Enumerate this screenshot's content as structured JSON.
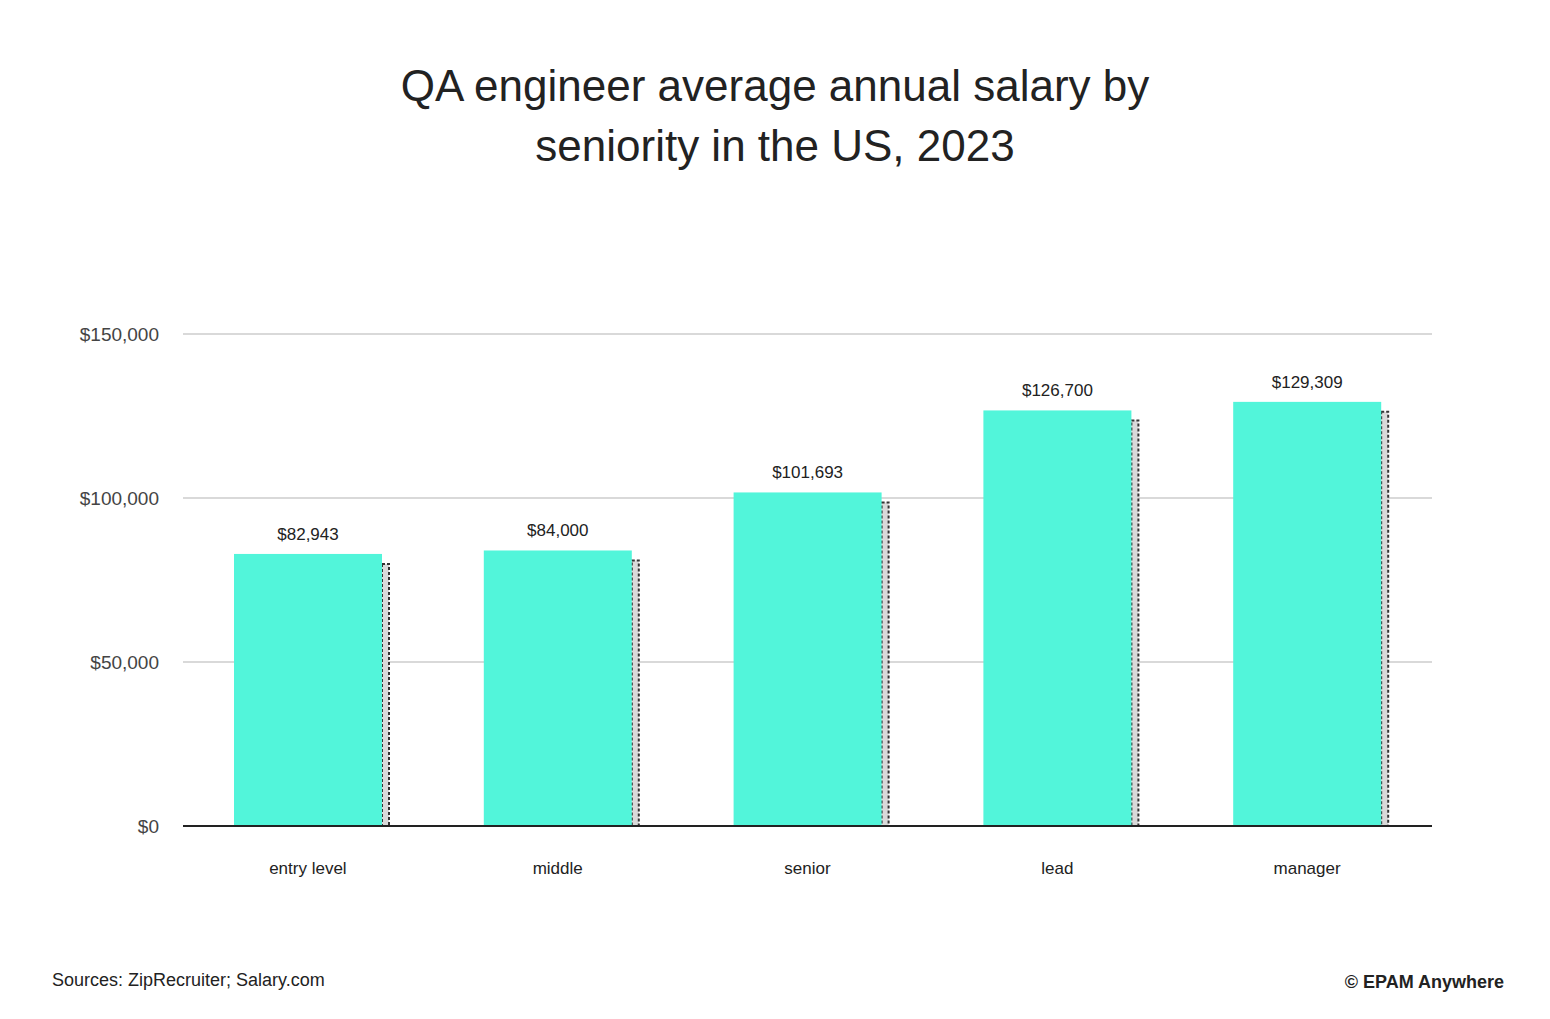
{
  "chart_data": {
    "type": "bar",
    "title": "QA engineer average annual salary by seniority in the US, 2023",
    "categories": [
      "entry level",
      "middle",
      "senior",
      "lead",
      "manager"
    ],
    "values": [
      82943,
      84000,
      101693,
      126700,
      129309
    ],
    "value_labels": [
      "$82,943",
      "$84,000",
      "$101,693",
      "$126,700",
      "$129,309"
    ],
    "color": "#52f5da",
    "ylim": [
      0,
      150000
    ],
    "yticks": [
      {
        "value": 0,
        "label": "$0"
      },
      {
        "value": 50000,
        "label": "$50,000"
      },
      {
        "value": 100000,
        "label": "$100,000"
      },
      {
        "value": 150000,
        "label": "$150,000"
      }
    ],
    "grid": true,
    "data_labels": true,
    "annotations": [
      "Sources: ZipRecruiter; Salary.com",
      "© EPAM Anywhere"
    ]
  }
}
